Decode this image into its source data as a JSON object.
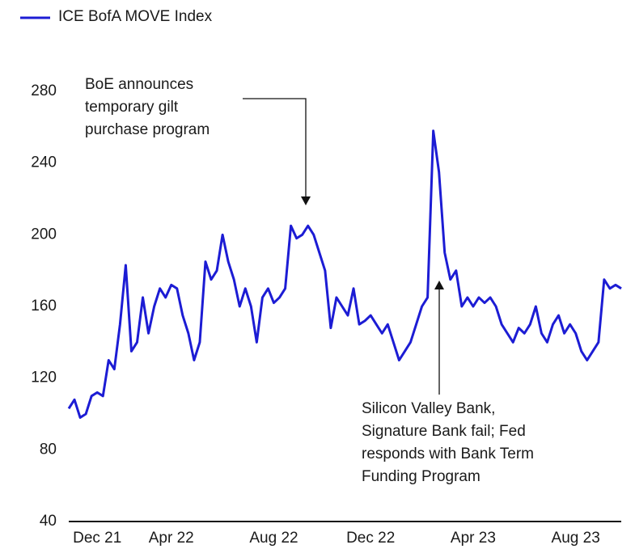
{
  "chart_data": {
    "type": "line",
    "series": [
      {
        "name": "ICE BofA MOVE Index",
        "color": "#1c1cd4",
        "values": [
          103,
          108,
          98,
          100,
          110,
          112,
          110,
          130,
          125,
          150,
          183,
          135,
          140,
          165,
          145,
          160,
          170,
          165,
          172,
          170,
          155,
          145,
          130,
          140,
          185,
          175,
          180,
          200,
          185,
          175,
          160,
          170,
          160,
          140,
          165,
          170,
          162,
          165,
          170,
          205,
          198,
          200,
          205,
          200,
          190,
          180,
          148,
          165,
          160,
          155,
          170,
          150,
          152,
          155,
          150,
          145,
          150,
          140,
          130,
          135,
          140,
          150,
          160,
          165,
          258,
          235,
          190,
          175,
          180,
          160,
          165,
          160,
          165,
          162,
          165,
          160,
          150,
          145,
          140,
          148,
          145,
          150,
          160,
          145,
          140,
          150,
          155,
          145,
          150,
          145,
          135,
          130,
          135,
          140,
          175,
          170,
          172,
          170
        ]
      }
    ],
    "categories": [
      null,
      null,
      null,
      null,
      null,
      "Dec 21",
      null,
      null,
      null,
      null,
      null,
      null,
      null,
      null,
      null,
      null,
      null,
      null,
      "Apr 22",
      null,
      null,
      null,
      null,
      null,
      null,
      null,
      null,
      null,
      null,
      null,
      null,
      null,
      null,
      null,
      null,
      null,
      "Aug 22",
      null,
      null,
      null,
      null,
      null,
      null,
      null,
      null,
      null,
      null,
      null,
      null,
      null,
      null,
      null,
      null,
      "Dec 22",
      null,
      null,
      null,
      null,
      null,
      null,
      null,
      null,
      null,
      null,
      null,
      null,
      null,
      null,
      null,
      null,
      null,
      "Apr 23",
      null,
      null,
      null,
      null,
      null,
      null,
      null,
      null,
      null,
      null,
      null,
      null,
      null,
      null,
      null,
      null,
      null,
      "Aug 23",
      null,
      null,
      null,
      null,
      null,
      null,
      null,
      null
    ],
    "ylim": [
      40,
      280
    ],
    "yticks": [
      40,
      80,
      120,
      160,
      200,
      240,
      280
    ],
    "grid": false,
    "annotations": [
      {
        "lines": [
          "BoE announces",
          "temporary gilt",
          "purchase program"
        ]
      },
      {
        "lines": [
          "Silicon Valley Bank,",
          "Signature Bank fail; Fed",
          "responds with Bank Term",
          "Funding Program"
        ]
      }
    ]
  }
}
